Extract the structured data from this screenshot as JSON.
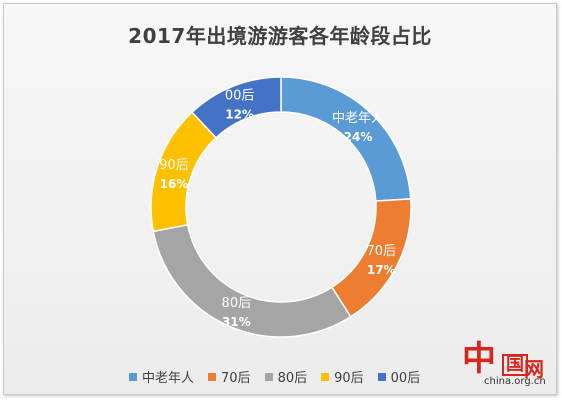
{
  "chart_data": {
    "type": "pie",
    "title": "2017年出境游游客各年龄段占比",
    "categories": [
      "中老年人",
      "70后",
      "80后",
      "90后",
      "00后"
    ],
    "values": [
      24,
      17,
      31,
      16,
      12
    ],
    "value_labels": [
      "24%",
      "17%",
      "31%",
      "16%",
      "12%"
    ],
    "colors": [
      "#5b9bd5",
      "#ed7d31",
      "#a5a5a5",
      "#ffc000",
      "#4472c4"
    ],
    "donut": true,
    "legend_position": "bottom"
  },
  "watermark": {
    "mark_text": "中",
    "mark_small": "国",
    "site_suffix": "网",
    "url": "china.org.cn"
  }
}
